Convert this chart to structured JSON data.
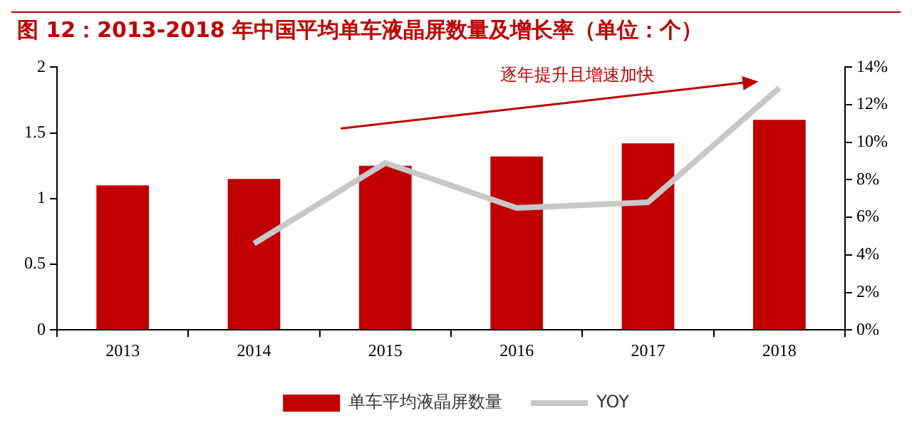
{
  "chart_data": {
    "type": "bar",
    "title": "图 12：2013-2018 年中国平均单车液晶屏数量及增长率（单位：个）",
    "categories": [
      "2013",
      "2014",
      "2015",
      "2016",
      "2017",
      "2018"
    ],
    "series": [
      {
        "name": "单车平均液晶屏数量",
        "color": "#c00000",
        "values": [
          1.1,
          1.15,
          1.25,
          1.32,
          1.42,
          1.6
        ]
      },
      {
        "name": "YOY",
        "type": "line",
        "axis": "y2",
        "color": "#c8c8c8",
        "values": [
          null,
          4.6,
          8.9,
          6.5,
          6.8,
          12.9
        ]
      }
    ],
    "ylim": [
      0,
      2
    ],
    "yticks": [
      0,
      0.5,
      1,
      1.5,
      2
    ],
    "y2lim": [
      0,
      14
    ],
    "y2ticks": [
      {
        "value": 0,
        "label": "0%"
      },
      {
        "value": 2,
        "label": "2%"
      },
      {
        "value": 4,
        "label": "4%"
      },
      {
        "value": 6,
        "label": "6%"
      },
      {
        "value": 8,
        "label": "8%"
      },
      {
        "value": 10,
        "label": "10%"
      },
      {
        "value": 12,
        "label": "12%"
      },
      {
        "value": 14,
        "label": "14%"
      }
    ],
    "annotations": [
      "逐年提升且增速加快"
    ],
    "grid": false,
    "legend": "bottom",
    "marker": "none",
    "line_style": "solid"
  }
}
